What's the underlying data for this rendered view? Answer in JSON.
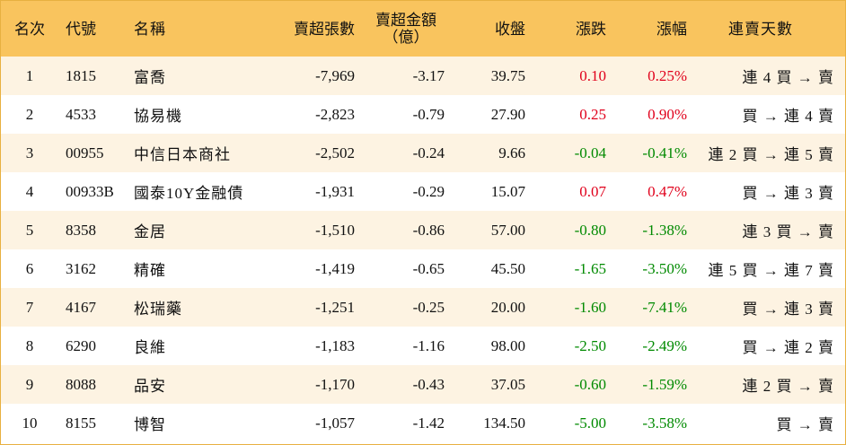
{
  "colors": {
    "header_bg": "#f9c45e",
    "row_alt_bg": "#fdf3e2",
    "border": "#e8b040",
    "up": "#e0001b",
    "down": "#008a00"
  },
  "headers": {
    "rank": "名次",
    "code": "代號",
    "name": "名稱",
    "net_sell_lots": "賣超張數",
    "net_sell_amount": "賣超金額",
    "net_sell_amount_unit": "（億）",
    "close": "收盤",
    "change": "漲跌",
    "change_pct": "漲幅",
    "streak": "連賣天數"
  },
  "rows": [
    {
      "rank": "1",
      "code": "1815",
      "name": "富喬",
      "lots": "-7,969",
      "amount": "-3.17",
      "close": "39.75",
      "change": "0.10",
      "pct": "0.25%",
      "dir": "up",
      "streak": "連 4 買 → 賣"
    },
    {
      "rank": "2",
      "code": "4533",
      "name": "協易機",
      "lots": "-2,823",
      "amount": "-0.79",
      "close": "27.90",
      "change": "0.25",
      "pct": "0.90%",
      "dir": "up",
      "streak": "買 → 連 4 賣"
    },
    {
      "rank": "3",
      "code": "00955",
      "name": "中信日本商社",
      "lots": "-2,502",
      "amount": "-0.24",
      "close": "9.66",
      "change": "-0.04",
      "pct": "-0.41%",
      "dir": "down",
      "streak": "連 2 買 → 連 5 賣"
    },
    {
      "rank": "4",
      "code": "00933B",
      "name": "國泰10Y金融債",
      "lots": "-1,931",
      "amount": "-0.29",
      "close": "15.07",
      "change": "0.07",
      "pct": "0.47%",
      "dir": "up",
      "streak": "買 → 連 3 賣"
    },
    {
      "rank": "5",
      "code": "8358",
      "name": "金居",
      "lots": "-1,510",
      "amount": "-0.86",
      "close": "57.00",
      "change": "-0.80",
      "pct": "-1.38%",
      "dir": "down",
      "streak": "連 3 買 → 賣"
    },
    {
      "rank": "6",
      "code": "3162",
      "name": "精確",
      "lots": "-1,419",
      "amount": "-0.65",
      "close": "45.50",
      "change": "-1.65",
      "pct": "-3.50%",
      "dir": "down",
      "streak": "連 5 買 → 連 7 賣"
    },
    {
      "rank": "7",
      "code": "4167",
      "name": "松瑞藥",
      "lots": "-1,251",
      "amount": "-0.25",
      "close": "20.00",
      "change": "-1.60",
      "pct": "-7.41%",
      "dir": "down",
      "streak": "買 → 連 3 賣"
    },
    {
      "rank": "8",
      "code": "6290",
      "name": "良維",
      "lots": "-1,183",
      "amount": "-1.16",
      "close": "98.00",
      "change": "-2.50",
      "pct": "-2.49%",
      "dir": "down",
      "streak": "買 → 連 2 賣"
    },
    {
      "rank": "9",
      "code": "8088",
      "name": "品安",
      "lots": "-1,170",
      "amount": "-0.43",
      "close": "37.05",
      "change": "-0.60",
      "pct": "-1.59%",
      "dir": "down",
      "streak": "連 2 買 → 賣"
    },
    {
      "rank": "10",
      "code": "8155",
      "name": "博智",
      "lots": "-1,057",
      "amount": "-1.42",
      "close": "134.50",
      "change": "-5.00",
      "pct": "-3.58%",
      "dir": "down",
      "streak": "買 → 賣"
    }
  ]
}
